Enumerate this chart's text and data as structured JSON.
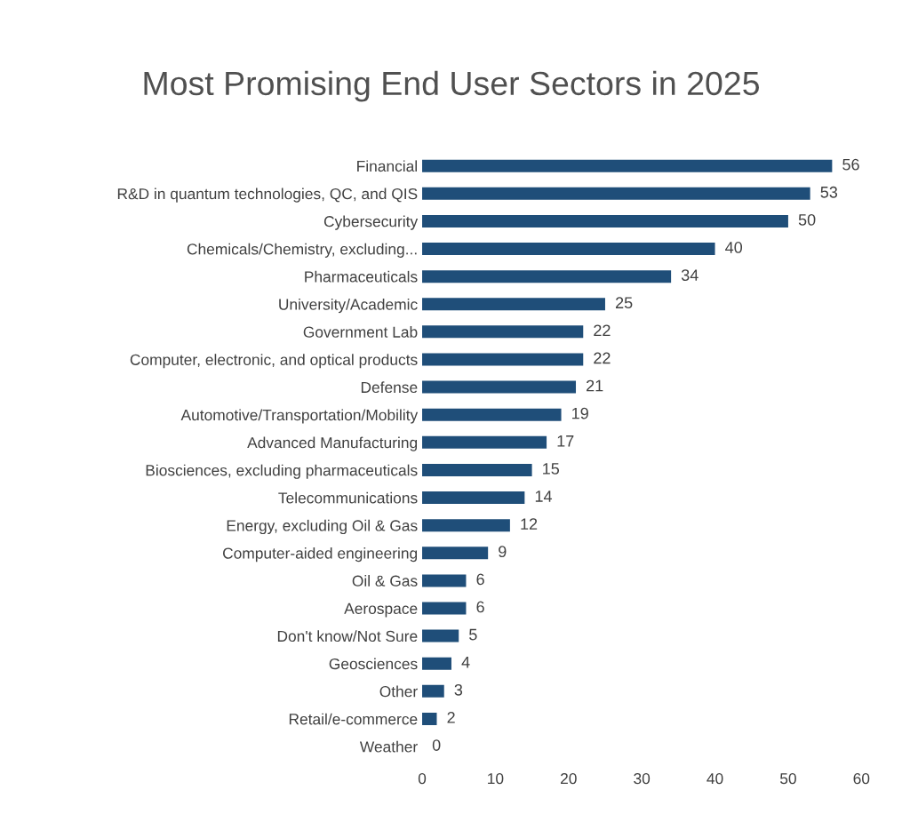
{
  "chart_data": {
    "type": "bar",
    "orientation": "horizontal",
    "title": "Most Promising End User Sectors in 2025",
    "categories": [
      "Financial",
      "R&D in quantum technologies, QC, and QIS",
      "Cybersecurity",
      "Chemicals/Chemistry, excluding...",
      "Pharmaceuticals",
      "University/Academic",
      "Government Lab",
      "Computer, electronic, and optical products",
      "Defense",
      "Automotive/Transportation/Mobility",
      "Advanced Manufacturing",
      "Biosciences, excluding pharmaceuticals",
      "Telecommunications",
      "Energy, excluding Oil & Gas",
      "Computer-aided engineering",
      "Oil & Gas",
      "Aerospace",
      "Don't know/Not Sure",
      "Geosciences",
      "Other",
      "Retail/e-commerce",
      "Weather"
    ],
    "values": [
      56,
      53,
      50,
      40,
      34,
      25,
      22,
      22,
      21,
      19,
      17,
      15,
      14,
      12,
      9,
      6,
      6,
      5,
      4,
      3,
      2,
      0
    ],
    "color": "#1f4e79",
    "xlim": [
      0,
      60
    ],
    "xticks": [
      0,
      10,
      20,
      30,
      40,
      50,
      60
    ],
    "data_labels": true,
    "grid": false
  }
}
